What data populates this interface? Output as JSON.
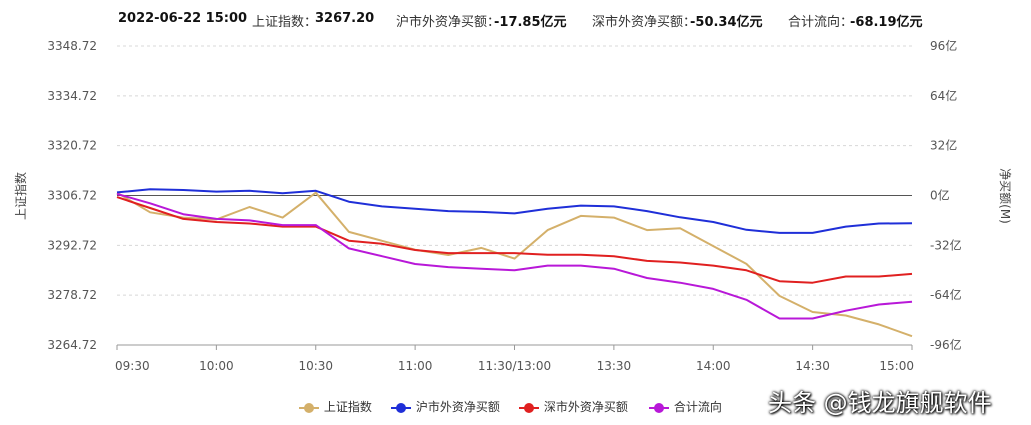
{
  "header": {
    "datetime": "2022-06-22  15:00",
    "sse_label": "上证指数：",
    "sse_value": "3267.20",
    "sh_label": "沪市外资净买额：",
    "sh_value": "-17.85亿元",
    "sz_label": "深市外资净买额：",
    "sz_value": "-50.34亿元",
    "total_label": "合计流向：",
    "total_value": "-68.19亿元"
  },
  "chart_data": {
    "type": "line",
    "ylabel_left": "上证指数",
    "ylabel_right": "净买额(M)",
    "y_left_ticks": [
      "3348.72",
      "3334.72",
      "3320.72",
      "3306.72",
      "3292.72",
      "3278.72",
      "3264.72"
    ],
    "y_left_range": [
      3264.72,
      3348.72
    ],
    "y_right_ticks": [
      "96亿",
      "64亿",
      "32亿",
      "0亿",
      "-32亿",
      "-64亿",
      "-96亿"
    ],
    "y_right_range": [
      -96,
      96
    ],
    "x_ticks": [
      "09:30",
      "10:00",
      "10:30",
      "11:00",
      "11:30/13:00",
      "13:30",
      "14:00",
      "14:30",
      "15:00"
    ],
    "grid": true,
    "legend_position": "bottom",
    "x": [
      "09:30",
      "09:40",
      "09:50",
      "10:00",
      "10:10",
      "10:20",
      "10:30",
      "10:40",
      "10:50",
      "11:00",
      "11:10",
      "11:20",
      "11:30",
      "13:10",
      "13:20",
      "13:30",
      "13:40",
      "13:50",
      "14:00",
      "14:10",
      "14:20",
      "14:30",
      "14:40",
      "14:50",
      "15:00"
    ],
    "series": [
      {
        "name": "上证指数",
        "axis": "left",
        "color": "#d4b06a",
        "values": [
          3307.5,
          3302.0,
          3300.5,
          3300.0,
          3303.5,
          3300.5,
          3307.5,
          3296.5,
          3294.0,
          3291.5,
          3290.0,
          3292.0,
          3289.0,
          3297.0,
          3301.0,
          3300.5,
          3297.0,
          3297.5,
          3292.5,
          3287.5,
          3278.5,
          3274.0,
          3273.0,
          3270.5,
          3267.2
        ]
      },
      {
        "name": "沪市外资净买额",
        "axis": "right",
        "color": "#1f2fd8",
        "values": [
          2.0,
          4.0,
          3.5,
          2.5,
          3.0,
          1.5,
          3.0,
          -4.0,
          -7.0,
          -8.5,
          -10.0,
          -10.5,
          -11.5,
          -8.5,
          -6.5,
          -7.0,
          -10.0,
          -14.0,
          -17.0,
          -22.0,
          -24.0,
          -24.0,
          -20.0,
          -18.0,
          -17.85
        ]
      },
      {
        "name": "深市外资净买额",
        "axis": "right",
        "color": "#e02020",
        "values": [
          -1.0,
          -8.0,
          -15.0,
          -17.0,
          -18.0,
          -20.0,
          -20.0,
          -29.0,
          -31.0,
          -35.0,
          -37.0,
          -37.0,
          -37.0,
          -38.0,
          -38.0,
          -39.0,
          -42.0,
          -43.0,
          -45.0,
          -48.0,
          -55.0,
          -56.0,
          -52.0,
          -52.0,
          -50.34
        ]
      },
      {
        "name": "合计流向",
        "axis": "right",
        "color": "#b818d8",
        "values": [
          1.0,
          -5.0,
          -12.0,
          -15.0,
          -16.0,
          -19.0,
          -19.0,
          -34.0,
          -39.0,
          -44.0,
          -46.0,
          -47.0,
          -48.0,
          -45.0,
          -45.0,
          -47.0,
          -53.0,
          -56.0,
          -60.0,
          -67.0,
          -79.0,
          -79.0,
          -74.0,
          -70.0,
          -68.19
        ]
      }
    ]
  },
  "legend": {
    "items": [
      "上证指数",
      "沪市外资净买额",
      "深市外资净买额",
      "合计流向"
    ],
    "colors": [
      "#d4b06a",
      "#1f2fd8",
      "#e02020",
      "#b818d8"
    ]
  },
  "watermark": "头条 @钱龙旗舰软件"
}
